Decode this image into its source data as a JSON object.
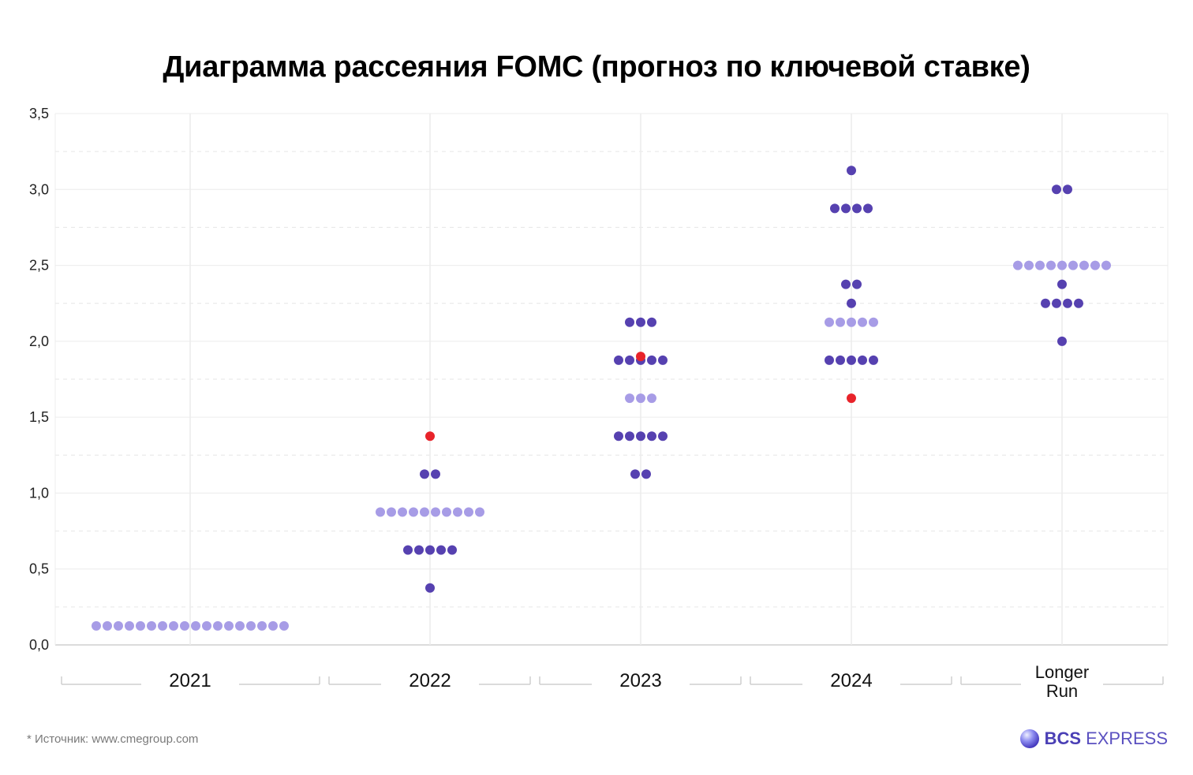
{
  "chart_data": {
    "type": "scatter",
    "title": "Диаграмма рассеяния FOMC (прогноз по ключевой ставке)",
    "ylim": [
      0,
      3.5
    ],
    "yticks": [
      "0,0",
      "0,5",
      "1,0",
      "1,5",
      "2,0",
      "2,5",
      "3,0",
      "3,5"
    ],
    "categories": [
      {
        "label": [
          "2021"
        ]
      },
      {
        "label": [
          "2022"
        ]
      },
      {
        "label": [
          "2023"
        ]
      },
      {
        "label": [
          "2024"
        ]
      },
      {
        "label": [
          "Longer",
          "Run"
        ]
      }
    ],
    "grid": true,
    "colors": {
      "dark": "#5641b0",
      "light": "#a79ce6",
      "red": "#e8232a"
    },
    "points": [
      [
        {
          "y": 0.125,
          "count": 18,
          "color": "light"
        }
      ],
      [
        {
          "y": 1.375,
          "count": 1,
          "color": "red"
        },
        {
          "y": 1.125,
          "count": 2,
          "color": "dark"
        },
        {
          "y": 0.875,
          "count": 10,
          "color": "light"
        },
        {
          "y": 0.625,
          "count": 5,
          "color": "dark"
        },
        {
          "y": 0.375,
          "count": 1,
          "color": "dark"
        }
      ],
      [
        {
          "y": 2.125,
          "count": 3,
          "color": "dark"
        },
        {
          "y": 1.875,
          "count": 5,
          "color": "dark"
        },
        {
          "y": 1.9,
          "count": 1,
          "color": "red"
        },
        {
          "y": 1.625,
          "count": 3,
          "color": "light"
        },
        {
          "y": 1.375,
          "count": 5,
          "color": "dark"
        },
        {
          "y": 1.125,
          "count": 2,
          "color": "dark"
        }
      ],
      [
        {
          "y": 3.125,
          "count": 1,
          "color": "dark"
        },
        {
          "y": 2.875,
          "count": 4,
          "color": "dark"
        },
        {
          "y": 2.375,
          "count": 2,
          "color": "dark"
        },
        {
          "y": 2.25,
          "count": 1,
          "color": "dark"
        },
        {
          "y": 2.125,
          "count": 5,
          "color": "light"
        },
        {
          "y": 1.875,
          "count": 5,
          "color": "dark"
        },
        {
          "y": 1.625,
          "count": 1,
          "color": "red"
        }
      ],
      [
        {
          "y": 3.0,
          "count": 2,
          "color": "dark"
        },
        {
          "y": 2.5,
          "count": 9,
          "color": "light"
        },
        {
          "y": 2.375,
          "count": 1,
          "color": "dark"
        },
        {
          "y": 2.25,
          "count": 4,
          "color": "dark"
        },
        {
          "y": 2.0,
          "count": 1,
          "color": "dark"
        }
      ]
    ]
  },
  "footer": {
    "source": "* Источник: www.cmegroup.com",
    "brand_bcs": "BCS",
    "brand_express": "EXPRESS",
    "brand_icon": "sphere-logo-icon"
  }
}
